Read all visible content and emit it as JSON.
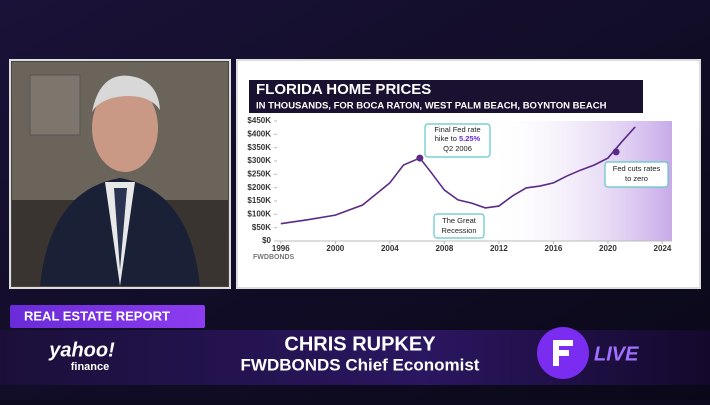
{
  "chart_data": {
    "type": "line",
    "title": "FLORIDA HOME PRICES",
    "subtitle": "IN THOUSANDS, FOR BOCA RATON, WEST PALM BEACH, BOYNTON BEACH",
    "source": "FWDBONDS",
    "x": [
      1996,
      1998,
      2000,
      2002,
      2004,
      2005,
      2006.2,
      2007,
      2008,
      2009,
      2010,
      2011,
      2012,
      2013,
      2014,
      2015,
      2016,
      2017,
      2018,
      2019,
      2020,
      2021,
      2022
    ],
    "values": [
      65,
      80,
      97,
      135,
      218,
      285,
      311,
      259,
      191,
      154,
      142,
      124,
      131,
      169,
      199,
      206,
      218,
      244,
      266,
      285,
      311,
      371,
      428
    ],
    "color": "#5b2a86",
    "xlim": [
      1995.5,
      2024.7
    ],
    "xticks": [
      1996,
      2000,
      2004,
      2008,
      2012,
      2016,
      2020,
      2024
    ],
    "ylim": [
      0,
      450
    ],
    "yticks": [
      {
        "value": 0,
        "label": "$0"
      },
      {
        "value": 50,
        "label": "$50K"
      },
      {
        "value": 100,
        "label": "$100K"
      },
      {
        "value": 150,
        "label": "$150K"
      },
      {
        "value": 200,
        "label": "$200K"
      },
      {
        "value": 250,
        "label": "$250K"
      },
      {
        "value": 300,
        "label": "$300K"
      },
      {
        "value": 350,
        "label": "$350K"
      },
      {
        "value": 400,
        "label": "$400K"
      },
      {
        "value": 450,
        "label": "$450K"
      }
    ],
    "grid": false,
    "markers": {
      "x": [
        2006.2,
        2020.6
      ],
      "values": [
        311,
        334
      ],
      "color": "#5b2a86"
    },
    "annotations": [
      {
        "lines": [
          "Final Fed rate",
          "hike to",
          "5.25%",
          "Q2 2006"
        ]
      },
      {
        "lines": [
          "The Great",
          "Recession"
        ]
      },
      {
        "lines": [
          "Fed cuts rates",
          "to zero"
        ]
      }
    ]
  },
  "segment": "REAL ESTATE REPORT",
  "guest": {
    "name": "CHRIS RUPKEY",
    "title": "FWDBONDS Chief Economist"
  },
  "brand": {
    "line1": "yahoo!",
    "line2": "finance"
  },
  "live": "LIVE"
}
